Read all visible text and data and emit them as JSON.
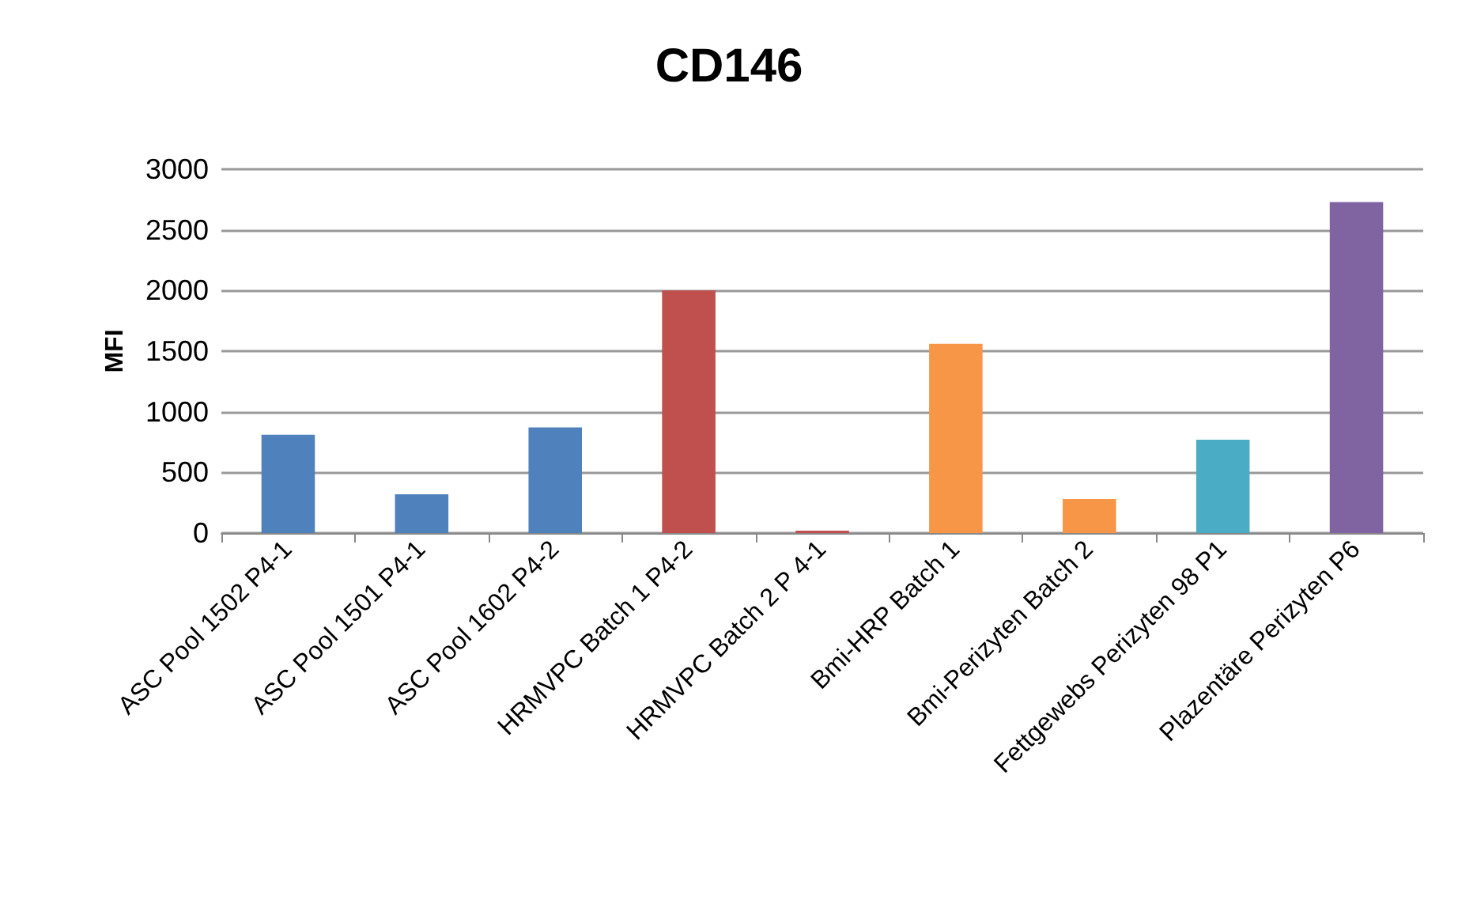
{
  "chart_data": {
    "type": "bar",
    "title": "CD146",
    "ylabel": "MFI",
    "categories": [
      "ASC Pool 1502 P4-1",
      "ASC Pool 1501 P4-1",
      "ASC Pool 1602 P4-2",
      "HRMVPC Batch 1 P4-2",
      "HRMVPC Batch 2 P 4-1",
      "Bmi-HRP Batch 1",
      "Bmi-Perizyten Batch 2",
      "Fettgewebs Perizyten 98 P1",
      "Plazentäre Perizyten P6"
    ],
    "values": [
      810,
      320,
      870,
      2000,
      20,
      1560,
      280,
      770,
      2730
    ],
    "colors": [
      "#4f81bd",
      "#4f81bd",
      "#4f81bd",
      "#c0504d",
      "#c0504d",
      "#f79646",
      "#f79646",
      "#4bacc6",
      "#8064a2"
    ],
    "ylim": [
      0,
      3000
    ],
    "yticks": [
      0,
      500,
      1000,
      1500,
      2000,
      2500,
      3000
    ],
    "grid": "y"
  }
}
